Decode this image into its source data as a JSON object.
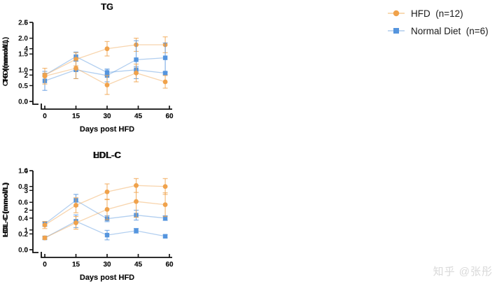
{
  "legend": {
    "position": "top-right",
    "items": [
      {
        "label": "HFD  (n=12)",
        "marker": "circle",
        "color": "#F0A24B",
        "line_color": "#F6CD9B"
      },
      {
        "label": "Normal Diet  (n=6)",
        "marker": "square",
        "color": "#5595DE",
        "line_color": "#AFCBEC"
      }
    ]
  },
  "watermark": "知乎 @张彤",
  "chart_data": [
    {
      "type": "line",
      "title": "TC",
      "ylabel": "CHOl(mmol/L)",
      "xlabel": "Days post HFD",
      "grid": false,
      "xlim": [
        0,
        60
      ],
      "ylim": [
        0,
        6
      ],
      "x": [
        0,
        15,
        30,
        44,
        58
      ],
      "xticks": [
        "0",
        "15",
        "30",
        "45",
        "60"
      ],
      "yticks": [
        "0",
        "2",
        "4",
        "6"
      ],
      "series": [
        {
          "name": "Normal Diet (n=6)",
          "marker": "square",
          "color": "#5595DE",
          "values": [
            2.0,
            3.4,
            2.2,
            2.4,
            2.15
          ],
          "errors": [
            0.1,
            0.35,
            0.25,
            0.25,
            0.1
          ]
        },
        {
          "name": "HFD (n=12)",
          "marker": "circle",
          "color": "#F0A24B",
          "values": [
            2.0,
            3.2,
            4.0,
            4.3,
            4.3
          ],
          "errors": [
            0.12,
            0.5,
            0.55,
            0.5,
            0.6
          ]
        }
      ]
    },
    {
      "type": "line",
      "title": "TG",
      "ylabel": "TG (mmol/L)",
      "xlabel": "Days post HFD",
      "grid": false,
      "xlim": [
        0,
        60
      ],
      "ylim": [
        0,
        2.5
      ],
      "x": [
        0,
        15,
        30,
        44,
        58
      ],
      "xticks": [
        "0",
        "15",
        "30",
        "45",
        "60"
      ],
      "yticks": [
        "0.0",
        "0.5",
        "1.0",
        "1.5",
        "2.0",
        "2.5"
      ],
      "series": [
        {
          "name": "Normal Diet (n=6)",
          "marker": "square",
          "color": "#5595DE",
          "values": [
            0.65,
            1.0,
            0.82,
            1.32,
            1.38
          ],
          "errors": [
            0.3,
            0.28,
            0.2,
            0.6,
            0.47
          ]
        },
        {
          "name": "HFD (n=12)",
          "marker": "circle",
          "color": "#F0A24B",
          "values": [
            0.8,
            1.05,
            0.52,
            0.9,
            0.62
          ],
          "errors": [
            0.25,
            0.33,
            0.3,
            0.28,
            0.2
          ]
        }
      ]
    },
    {
      "type": "line",
      "title": "HDL-C",
      "ylabel": "HDL-C(mmol/L)",
      "xlabel": "Days post HFD",
      "grid": false,
      "xlim": [
        0,
        60
      ],
      "ylim": [
        0,
        4
      ],
      "x": [
        0,
        15,
        30,
        44,
        58
      ],
      "xticks": [
        "0",
        "15",
        "30",
        "45",
        "60"
      ],
      "yticks": [
        "0",
        "1",
        "2",
        "3",
        "4"
      ],
      "series": [
        {
          "name": "Normal Diet (n=6)",
          "marker": "square",
          "color": "#5595DE",
          "values": [
            1.3,
            2.5,
            1.57,
            1.75,
            1.6
          ],
          "errors": [
            0.12,
            0.3,
            0.15,
            0.25,
            0.12
          ]
        },
        {
          "name": "HFD (n=12)",
          "marker": "circle",
          "color": "#F0A24B",
          "values": [
            1.25,
            2.25,
            2.93,
            3.25,
            3.2
          ],
          "errors": [
            0.18,
            0.38,
            0.4,
            0.35,
            0.4
          ]
        }
      ]
    },
    {
      "type": "line",
      "title": "LDL-C",
      "ylabel": "LDL-C (mmol/L)",
      "xlabel": "Days post HFD",
      "grid": false,
      "xlim": [
        0,
        60
      ],
      "ylim": [
        0,
        1.0
      ],
      "x": [
        0,
        15,
        30,
        44,
        58
      ],
      "xticks": [
        "0",
        "15",
        "30",
        "45",
        "60"
      ],
      "yticks": [
        "0.0",
        "0.2",
        "0.4",
        "0.6",
        "0.8",
        "1.0"
      ],
      "series": [
        {
          "name": "Normal Diet (n=6)",
          "marker": "square",
          "color": "#5595DE",
          "values": [
            0.15,
            0.36,
            0.185,
            0.24,
            0.17
          ],
          "errors": [
            0.02,
            0.08,
            0.06,
            0.03,
            0.02
          ]
        },
        {
          "name": "HFD (n=12)",
          "marker": "circle",
          "color": "#F0A24B",
          "values": [
            0.15,
            0.34,
            0.51,
            0.61,
            0.57
          ],
          "errors": [
            0.02,
            0.08,
            0.13,
            0.2,
            0.15
          ]
        }
      ]
    }
  ]
}
